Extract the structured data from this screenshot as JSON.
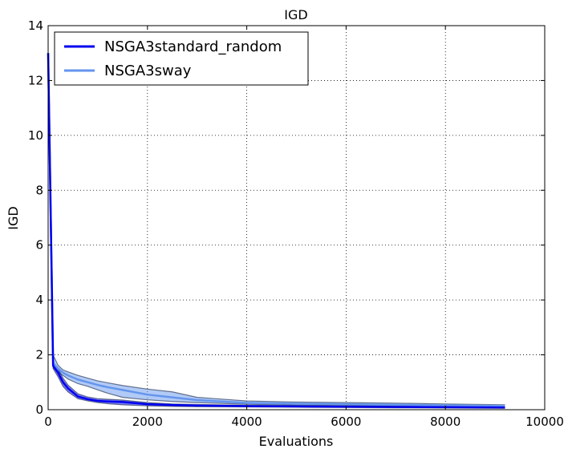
{
  "chart_data": {
    "type": "line",
    "title": "IGD",
    "xlabel": "Evaluations",
    "ylabel": "IGD",
    "xlim": [
      0,
      10000
    ],
    "ylim": [
      0,
      14
    ],
    "xticks": [
      0,
      2000,
      4000,
      6000,
      8000,
      10000
    ],
    "yticks": [
      0,
      2,
      4,
      6,
      8,
      10,
      12,
      14
    ],
    "grid": true,
    "legend_position": "top-left",
    "series": [
      {
        "name": "NSGA3standard_random",
        "color": "#0000ee",
        "x": [
          0,
          100,
          200,
          300,
          400,
          600,
          800,
          1000,
          1200,
          1500,
          2000,
          2500,
          3000,
          4000,
          5000,
          6000,
          7000,
          8000,
          9200
        ],
        "y": [
          13.0,
          1.6,
          1.35,
          1.0,
          0.78,
          0.48,
          0.38,
          0.32,
          0.3,
          0.28,
          0.2,
          0.17,
          0.15,
          0.13,
          0.12,
          0.11,
          0.1,
          0.09,
          0.08
        ],
        "upper": [
          13.0,
          1.7,
          1.5,
          1.15,
          0.9,
          0.58,
          0.46,
          0.4,
          0.38,
          0.35,
          0.26,
          0.21,
          0.19,
          0.16,
          0.15,
          0.14,
          0.13,
          0.12,
          0.11
        ],
        "lower": [
          13.0,
          1.5,
          1.2,
          0.85,
          0.65,
          0.4,
          0.32,
          0.26,
          0.22,
          0.18,
          0.14,
          0.12,
          0.11,
          0.1,
          0.09,
          0.08,
          0.07,
          0.06,
          0.05
        ]
      },
      {
        "name": "NSGA3sway",
        "color": "#6495ed",
        "x": [
          0,
          100,
          200,
          300,
          400,
          600,
          800,
          1000,
          1200,
          1500,
          2000,
          2500,
          3000,
          4000,
          5000,
          6000,
          7000,
          8000,
          9200
        ],
        "y": [
          13.0,
          1.7,
          1.5,
          1.35,
          1.25,
          1.1,
          1.0,
          0.9,
          0.82,
          0.72,
          0.55,
          0.45,
          0.35,
          0.25,
          0.22,
          0.2,
          0.18,
          0.16,
          0.14
        ],
        "upper": [
          13.0,
          2.0,
          1.62,
          1.45,
          1.38,
          1.25,
          1.15,
          1.05,
          0.98,
          0.88,
          0.75,
          0.65,
          0.45,
          0.32,
          0.28,
          0.26,
          0.24,
          0.21,
          0.18
        ],
        "lower": [
          13.0,
          1.55,
          1.38,
          1.25,
          1.12,
          0.95,
          0.85,
          0.72,
          0.6,
          0.45,
          0.36,
          0.3,
          0.26,
          0.2,
          0.17,
          0.15,
          0.14,
          0.12,
          0.1
        ]
      }
    ]
  }
}
